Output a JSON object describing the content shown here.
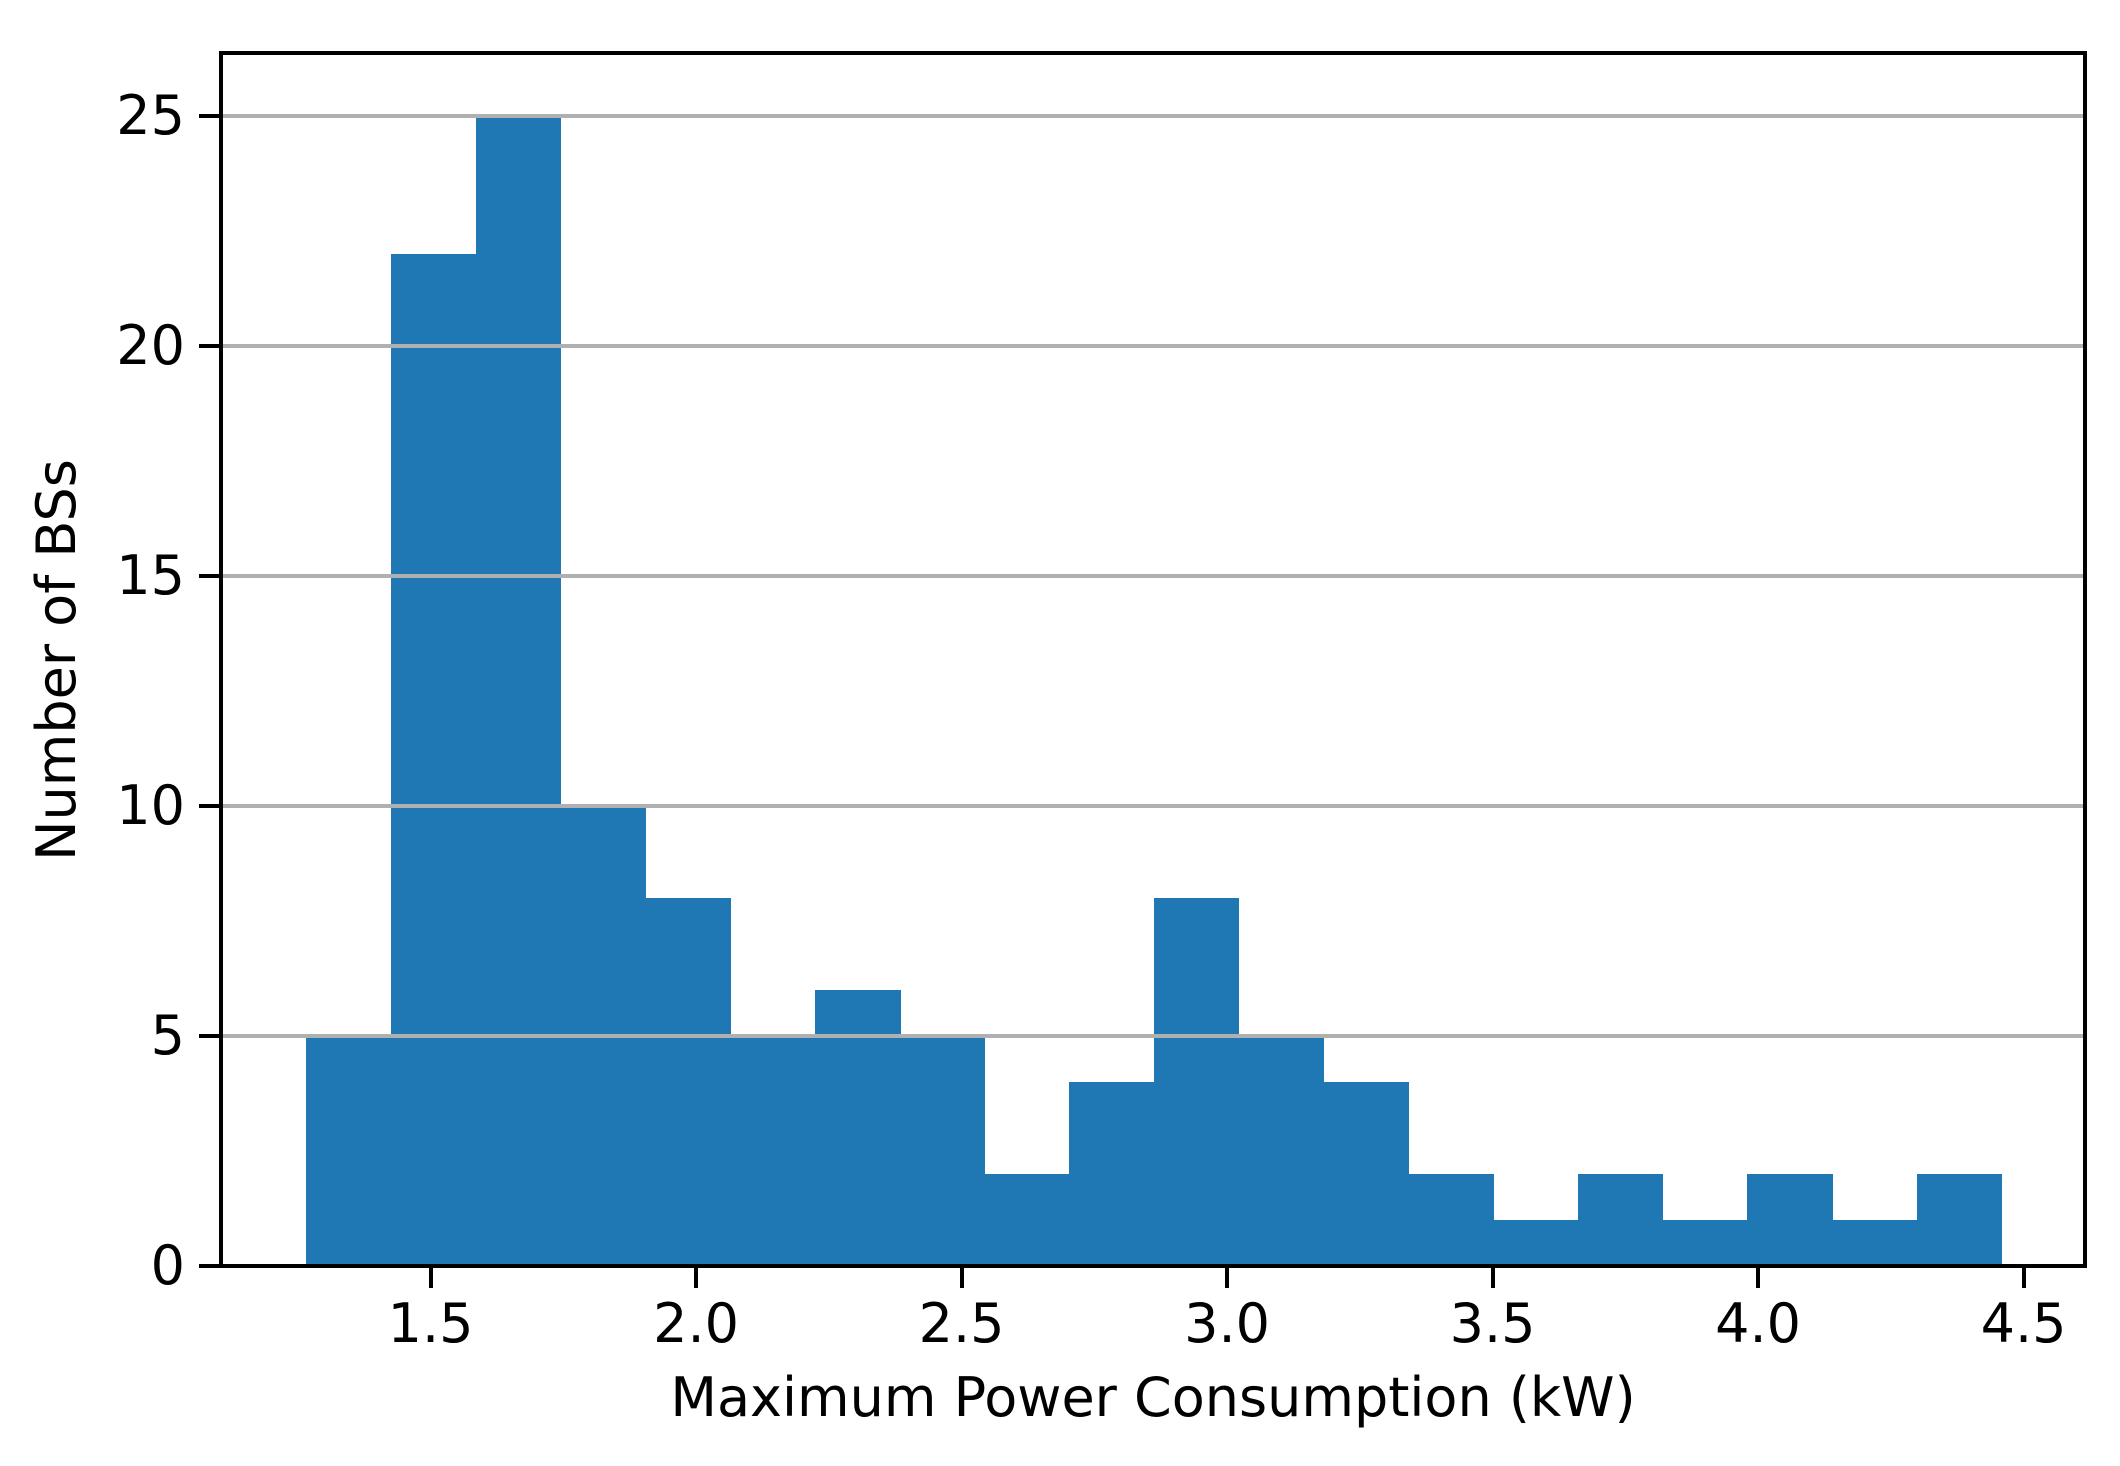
{
  "chart_data": {
    "type": "bar",
    "subtype": "histogram",
    "title": "",
    "xlabel": "Maximum Power Consumption (kW)",
    "ylabel": "Number of BSs",
    "bin_edges": [
      1.266,
      1.426,
      1.585,
      1.745,
      1.905,
      2.064,
      2.224,
      2.384,
      2.543,
      2.703,
      2.863,
      3.022,
      3.182,
      3.341,
      3.501,
      3.661,
      3.82,
      3.98,
      4.14,
      4.299,
      4.459
    ],
    "counts": [
      5,
      22,
      25,
      10,
      8,
      5,
      6,
      5,
      2,
      4,
      8,
      5,
      4,
      2,
      1,
      2,
      1,
      2,
      1,
      2
    ],
    "total_count": 120,
    "xticks": [
      1.5,
      2.0,
      2.5,
      3.0,
      3.5,
      4.0,
      4.5
    ],
    "xtick_labels": [
      "1.5",
      "2.0",
      "2.5",
      "3.0",
      "3.5",
      "4.0",
      "4.5"
    ],
    "yticks": [
      0,
      5,
      10,
      15,
      20,
      25
    ],
    "ytick_labels": [
      "0",
      "5",
      "10",
      "15",
      "20",
      "25"
    ],
    "xlim": [
      1.1053,
      4.6156
    ],
    "ylim": [
      0,
      26.37
    ],
    "grid": "horizontal-major-above-bars",
    "legend": "none",
    "bar_color": "#1f77b4",
    "grid_color": "#b0b0b0",
    "axis_color": "#000000",
    "background_color": "#ffffff"
  }
}
